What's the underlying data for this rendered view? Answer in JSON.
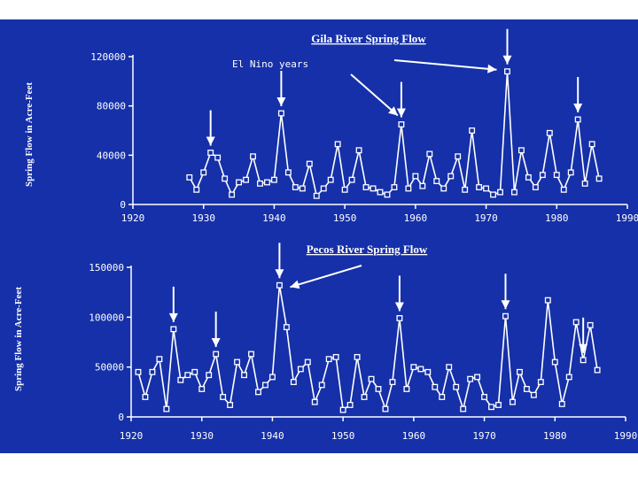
{
  "chart_data": [
    {
      "type": "line",
      "title": "Gila River Spring Flow",
      "ylabel": "Spring Flow in Acre-Feet",
      "xlabel": "",
      "xlim": [
        1920,
        1990
      ],
      "ylim": [
        0,
        120000
      ],
      "xticks": [
        "1920",
        "1930",
        "1940",
        "1950",
        "1960",
        "1970",
        "1980",
        "1990"
      ],
      "yticks": [
        "0",
        "40000",
        "80000",
        "120000"
      ],
      "annotation": "El Nino years",
      "el_nino_years": [
        1931,
        1941,
        1958,
        1973,
        1983
      ],
      "series": [
        {
          "x": [
            1928,
            1929,
            1930,
            1931,
            1932,
            1933,
            1934,
            1935,
            1936,
            1937,
            1938,
            1939,
            1940,
            1941,
            1942,
            1943,
            1944,
            1945,
            1946,
            1947,
            1948,
            1949,
            1950,
            1951,
            1952,
            1953,
            1954,
            1955,
            1956,
            1957,
            1958,
            1959,
            1960,
            1961,
            1962,
            1963,
            1964,
            1965,
            1966,
            1967,
            1968,
            1969,
            1970,
            1971,
            1972,
            1973,
            1974,
            1975,
            1976,
            1977,
            1978,
            1979,
            1980,
            1981,
            1982,
            1983,
            1984,
            1985,
            1986
          ],
          "y": [
            22000,
            12000,
            26000,
            42000,
            38000,
            21000,
            8000,
            18000,
            20000,
            39000,
            17000,
            18000,
            20000,
            74000,
            26000,
            14000,
            13000,
            33000,
            7000,
            13000,
            20000,
            49000,
            12000,
            20000,
            44000,
            14000,
            13000,
            10000,
            8000,
            14000,
            65000,
            13000,
            23000,
            15000,
            41000,
            19000,
            13000,
            23000,
            39000,
            12000,
            60000,
            14000,
            13000,
            8000,
            10000,
            108000,
            10000,
            44000,
            22000,
            14000,
            24000,
            58000,
            24000,
            12000,
            26000,
            69000,
            17000,
            49000,
            21000
          ]
        }
      ]
    },
    {
      "type": "line",
      "title": "Pecos River Spring Flow",
      "ylabel": "Spring Flow in Acre-Feet",
      "xlabel": "",
      "xlim": [
        1920,
        1990
      ],
      "ylim": [
        0,
        150000
      ],
      "xticks": [
        "1920",
        "1930",
        "1940",
        "1950",
        "1960",
        "1970",
        "1980",
        "1990"
      ],
      "yticks": [
        "0",
        "50000",
        "100000",
        "150000"
      ],
      "el_nino_years": [
        1926,
        1932,
        1941,
        1958,
        1973,
        1984
      ],
      "series": [
        {
          "x": [
            1921,
            1922,
            1923,
            1924,
            1925,
            1926,
            1927,
            1928,
            1929,
            1930,
            1931,
            1932,
            1933,
            1934,
            1935,
            1936,
            1937,
            1938,
            1939,
            1940,
            1941,
            1942,
            1943,
            1944,
            1945,
            1946,
            1947,
            1948,
            1949,
            1950,
            1951,
            1952,
            1953,
            1954,
            1955,
            1956,
            1957,
            1958,
            1959,
            1960,
            1961,
            1962,
            1963,
            1964,
            1965,
            1966,
            1967,
            1968,
            1969,
            1970,
            1971,
            1972,
            1973,
            1974,
            1975,
            1976,
            1977,
            1978,
            1979,
            1980,
            1981,
            1982,
            1983,
            1984,
            1985,
            1986
          ],
          "y": [
            45000,
            20000,
            45000,
            58000,
            8000,
            88000,
            37000,
            42000,
            45000,
            28000,
            42000,
            63000,
            20000,
            12000,
            55000,
            42000,
            63000,
            25000,
            32000,
            40000,
            132000,
            90000,
            35000,
            48000,
            55000,
            15000,
            32000,
            58000,
            60000,
            7000,
            12000,
            60000,
            20000,
            38000,
            28000,
            8000,
            35000,
            99000,
            28000,
            50000,
            48000,
            45000,
            30000,
            20000,
            50000,
            30000,
            8000,
            38000,
            40000,
            20000,
            10000,
            12000,
            101000,
            15000,
            45000,
            28000,
            22000,
            35000,
            117000,
            55000,
            13000,
            40000,
            95000,
            57000,
            92000,
            47000
          ]
        }
      ]
    }
  ]
}
